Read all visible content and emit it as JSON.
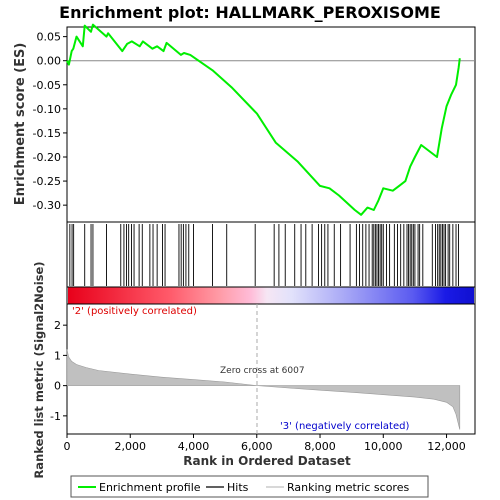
{
  "chart_data": {
    "type": "line",
    "title": "Enrichment plot: HALLMARK_PEROXISOME",
    "es_panel": {
      "ylabel": "Enrichment score (ES)",
      "ylim": [
        -0.335,
        0.07
      ],
      "yticks": [
        0.05,
        0.0,
        -0.05,
        -0.1,
        -0.15,
        -0.2,
        -0.25,
        -0.3
      ],
      "ytick_labels": [
        "0.05",
        "0.00",
        "-0.05",
        "-0.10",
        "-0.15",
        "-0.20",
        "-0.25",
        "-0.30"
      ],
      "series_name": "Enrichment profile",
      "series_color": "#00ee00",
      "x": [
        0,
        60,
        150,
        200,
        300,
        500,
        560,
        760,
        820,
        1250,
        1300,
        1750,
        1900,
        2050,
        2300,
        2400,
        2700,
        2850,
        3050,
        3150,
        3600,
        3700,
        3900,
        4600,
        5200,
        6007,
        6600,
        7300,
        8000,
        8300,
        8600,
        9100,
        9300,
        9500,
        9700,
        9850,
        10000,
        10300,
        10500,
        10700,
        10850,
        11000,
        11200,
        11700,
        11850,
        12000,
        12150,
        12300,
        12380,
        12420
      ],
      "y": [
        0.0,
        -0.008,
        0.02,
        0.025,
        0.05,
        0.03,
        0.073,
        0.06,
        0.075,
        0.05,
        0.057,
        0.02,
        0.035,
        0.04,
        0.03,
        0.04,
        0.025,
        0.03,
        0.02,
        0.037,
        0.012,
        0.016,
        0.012,
        -0.02,
        -0.055,
        -0.11,
        -0.17,
        -0.21,
        -0.26,
        -0.265,
        -0.28,
        -0.31,
        -0.32,
        -0.305,
        -0.31,
        -0.29,
        -0.265,
        -0.27,
        -0.26,
        -0.25,
        -0.22,
        -0.2,
        -0.175,
        -0.2,
        -0.14,
        -0.095,
        -0.07,
        -0.05,
        -0.015,
        0.005
      ]
    },
    "hits": {
      "series_name": "Hits",
      "positions": [
        90,
        160,
        210,
        560,
        760,
        820,
        1250,
        1700,
        1800,
        1880,
        1950,
        2040,
        2120,
        2280,
        2380,
        2620,
        2720,
        2850,
        3020,
        3100,
        3540,
        3610,
        3680,
        3760,
        3850,
        4000,
        4600,
        5050,
        5950,
        6550,
        6700,
        6900,
        7200,
        7400,
        7550,
        7750,
        7950,
        8050,
        8150,
        8250,
        8450,
        8650,
        8950,
        9150,
        9250,
        9350,
        9450,
        9550,
        9650,
        9700,
        9750,
        9800,
        9850,
        9900,
        9950,
        10000,
        10100,
        10200,
        10350,
        10450,
        10550,
        10650,
        10750,
        10800,
        10850,
        10900,
        10950,
        11000,
        11100,
        11150,
        11250,
        11550,
        11650,
        11720,
        11770,
        11820,
        11870,
        11920,
        11970,
        12050,
        12100,
        12200,
        12300,
        12380
      ]
    },
    "ranked_metric": {
      "xlabel": "Rank in Ordered Dataset",
      "ylabel": "Ranked list metric (Signal2Noise)",
      "ylim": [
        -1.6,
        2.7
      ],
      "yticks": [
        2,
        1,
        0,
        -1
      ],
      "ytick_labels": [
        "2",
        "1",
        "0",
        "-1"
      ],
      "xlim": [
        0,
        12900
      ],
      "xticks": [
        0,
        2000,
        4000,
        6000,
        8000,
        10000,
        12000
      ],
      "xtick_labels": [
        "0",
        "2,000",
        "4,000",
        "6,000",
        "8,000",
        "10,000",
        "12,000"
      ],
      "series_name": "Ranking metric scores",
      "curve_x": [
        0,
        50,
        150,
        300,
        600,
        1000,
        2000,
        3000,
        4000,
        5000,
        6007,
        7000,
        8000,
        9000,
        10000,
        11000,
        11600,
        12000,
        12200,
        12300,
        12380,
        12420
      ],
      "curve_y": [
        1.2,
        0.95,
        0.8,
        0.7,
        0.6,
        0.5,
        0.38,
        0.28,
        0.2,
        0.12,
        0.0,
        -0.08,
        -0.15,
        -0.22,
        -0.3,
        -0.38,
        -0.45,
        -0.55,
        -0.7,
        -0.95,
        -1.3,
        -1.45
      ],
      "zero_cross_label": "Zero cross at 6007",
      "zero_cross": 6007,
      "positive_label": "'2' (positively correlated)",
      "negative_label": "'3' (negatively correlated)"
    },
    "legend": {
      "placement": "bottom",
      "entries": [
        {
          "label": "Enrichment profile",
          "color": "#00ee00"
        },
        {
          "label": "Hits",
          "color": "#000000"
        },
        {
          "label": "Ranking metric scores",
          "color": "#c0c0c0"
        }
      ]
    }
  }
}
